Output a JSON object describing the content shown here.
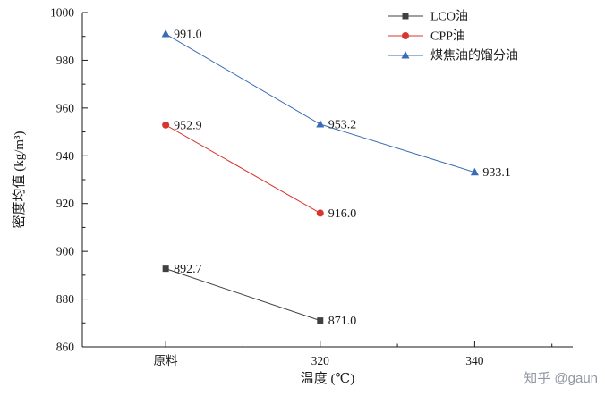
{
  "chart_data": {
    "type": "line",
    "title": "",
    "x_categories": [
      "原料",
      "320",
      "340"
    ],
    "xlabel": "温度 (℃)",
    "ylabel": "密度均值 (kg/m³)",
    "ylim": [
      860,
      1000
    ],
    "y_major_step": 20,
    "y_minor_step": 10,
    "grid": false,
    "legend_position": "top-right-inside",
    "label_color": "#1a1a1a",
    "series": [
      {
        "name": "LCO油",
        "marker": "square",
        "color": "#404040",
        "values": [
          892.7,
          871.0,
          null
        ]
      },
      {
        "name": "CPP油",
        "marker": "circle",
        "color": "#d7352e",
        "values": [
          952.9,
          916.0,
          null
        ]
      },
      {
        "name": "煤焦油的馏分油",
        "marker": "triangle",
        "color": "#3a6cb5",
        "values": [
          991.0,
          953.2,
          933.1
        ]
      }
    ]
  },
  "watermark": "知乎 @gaun"
}
